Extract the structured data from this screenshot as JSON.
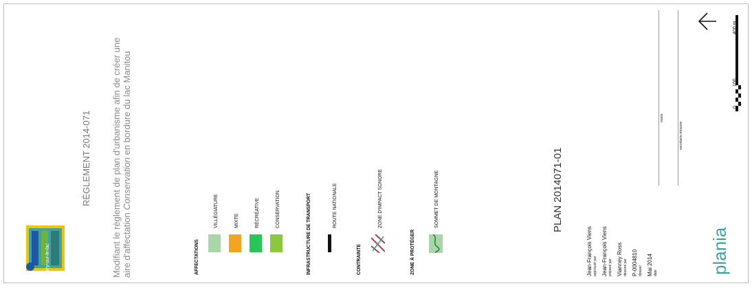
{
  "title": "RÈGLEMENT 2014-071",
  "subtitle": {
    "part1": "Modifiant le règlement de plan d'urbanisme afin de créer une aire d'affectation ",
    "italic": "Conservation",
    "part2": " en bordure du lac Manitou"
  },
  "logo": {
    "text": "ivry-sur-le-lac",
    "colors": {
      "teal": "#3fa3a3",
      "green": "#6db33f",
      "blue": "#1f57a8",
      "yellow": "#f2c400"
    }
  },
  "legend": {
    "affectations": {
      "title": "AFFECTATIONS",
      "items": [
        {
          "label": "VILLÉGIATURE",
          "color": "#a9d6a8"
        },
        {
          "label": "MIXTE",
          "color": "#f4a41e"
        },
        {
          "label": "RÉCRÉATIVE",
          "color": "#27c65a"
        },
        {
          "label": "CONSERVATION",
          "color": "#8dc63f"
        }
      ]
    },
    "transport": {
      "title": "INFRASTRUCTURE DE TRANSPORT",
      "item": "ROUTE NATIONALE",
      "color": "#111111"
    },
    "contrainte": {
      "title": "CONTRAINTE",
      "item": "ZONE D'IMPACT SONORE",
      "hatch_color": "#b0385a"
    },
    "zone": {
      "title": "ZONE À PROTÉGER",
      "item": "SOMMET DE MONTAGNE",
      "color": "#a9d6a8",
      "line_color": "#1b7d3c"
    }
  },
  "plan_title": "PLAN 2014071-01",
  "roles": [
    {
      "name": "Jean-François Viens",
      "caption": "approuvé par"
    },
    {
      "name": "Jean-François Viens",
      "caption": "préparé par"
    },
    {
      "name": "Vianney Ross",
      "caption": "dessiné par"
    },
    {
      "name": "P-0004810",
      "caption": "dossier"
    },
    {
      "name": "Mai 2014",
      "caption": "date"
    }
  ],
  "signatures": {
    "maire": "maire",
    "secretaire": "secrétaire-trésorier"
  },
  "scale": {
    "zero": "0",
    "mid": "100",
    "end": "400 m"
  },
  "brand": {
    "text": "plania",
    "color": "#3aa3a5"
  }
}
